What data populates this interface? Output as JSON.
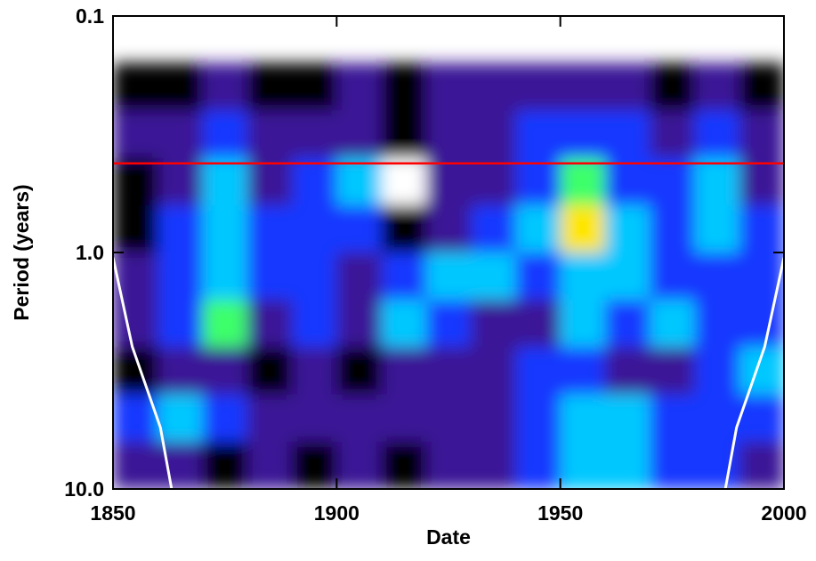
{
  "chart_data": {
    "type": "heatmap",
    "xlabel": "Date",
    "ylabel": "Period (years)",
    "xlim": [
      1850,
      2000
    ],
    "xticks": [
      1850,
      1900,
      1950,
      2000
    ],
    "ylim": [
      0.1,
      10
    ],
    "yscale": "log",
    "yinvert": true,
    "yticks": [
      0.1,
      {
        "value": 1,
        "label": "1.0"
      },
      {
        "value": 10,
        "label": "10.0"
      }
    ],
    "x": [
      1855,
      1865,
      1875,
      1885,
      1895,
      1905,
      1915,
      1925,
      1935,
      1945,
      1955,
      1965,
      1975,
      1985,
      1995
    ],
    "y_bins": [
      0.158,
      0.251,
      0.398,
      0.631,
      1.0,
      1.585,
      2.512,
      3.981,
      6.31,
      10
    ],
    "z": [
      [
        1,
        1,
        2,
        1,
        1,
        2,
        1,
        2,
        2,
        2,
        2,
        2,
        1,
        2,
        1
      ],
      [
        2,
        2,
        3,
        2,
        2,
        2,
        1,
        2,
        2,
        3,
        3,
        3,
        2,
        3,
        2
      ],
      [
        1,
        2,
        4,
        2,
        3,
        4,
        0,
        2,
        2,
        3,
        5,
        3,
        3,
        4,
        2
      ],
      [
        1,
        3,
        4,
        3,
        3,
        3,
        1,
        2,
        3,
        4,
        6,
        4,
        3,
        4,
        3
      ],
      [
        2,
        3,
        4,
        3,
        3,
        2,
        3,
        4,
        4,
        3,
        4,
        4,
        3,
        3,
        3
      ],
      [
        2,
        3,
        5,
        2,
        3,
        2,
        4,
        3,
        2,
        2,
        4,
        3,
        4,
        3,
        3
      ],
      [
        1,
        2,
        2,
        1,
        2,
        1,
        2,
        2,
        2,
        3,
        3,
        2,
        2,
        3,
        4
      ],
      [
        3,
        4,
        3,
        2,
        2,
        2,
        2,
        2,
        2,
        3,
        4,
        4,
        3,
        3,
        3
      ],
      [
        2,
        2,
        1,
        2,
        1,
        2,
        1,
        2,
        2,
        3,
        4,
        4,
        3,
        3,
        2
      ]
    ],
    "colorscale": [
      "#ffffff",
      "#000000",
      "#3b1496",
      "#1438ff",
      "#00c8ff",
      "#3cff6a",
      "#ffe600",
      "#ff1a1a"
    ],
    "lines": [
      {
        "x": [
          1850,
          1854.3,
          1860.6,
          1863.1
        ],
        "values": [
          1.05,
          2.5,
          5.5,
          10
        ],
        "color": "#ffffff"
      },
      {
        "x": [
          1986.9,
          1989.4,
          1995.7,
          2000
        ],
        "values": [
          10,
          5.5,
          2.5,
          1.05
        ],
        "color": "#ffffff"
      }
    ],
    "reference_line": {
      "value": 0.42,
      "color": "#ff0000"
    }
  }
}
